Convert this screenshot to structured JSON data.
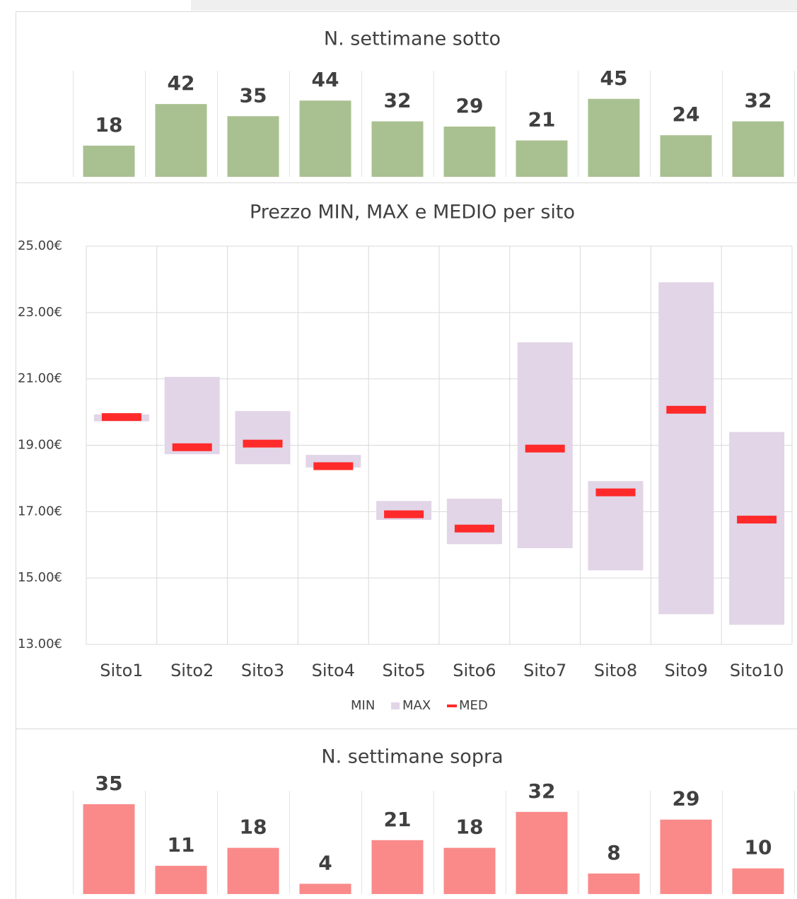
{
  "chart_data": [
    {
      "type": "bar",
      "title": "N. settimane sotto",
      "color": "#a9c191",
      "values": [
        18,
        42,
        35,
        44,
        32,
        29,
        21,
        45,
        24,
        32
      ]
    },
    {
      "type": "range",
      "title": "Prezzo MIN, MAX e MEDIO per sito",
      "categories": [
        "Sito1",
        "Sito2",
        "Sito3",
        "Sito4",
        "Sito5",
        "Sito6",
        "Sito7",
        "Sito8",
        "Sito9",
        "Sito10"
      ],
      "series": [
        {
          "name": "MIN",
          "values": [
            19.72,
            18.73,
            18.43,
            18.33,
            16.75,
            16.02,
            15.9,
            15.23,
            13.91,
            13.59
          ]
        },
        {
          "name": "MAX",
          "color": "#e1d5e7",
          "values": [
            19.93,
            21.06,
            20.03,
            18.71,
            17.32,
            17.39,
            22.1,
            17.92,
            23.91,
            19.4
          ]
        },
        {
          "name": "MED",
          "color": "#ff2a2a",
          "values": [
            19.85,
            18.94,
            19.05,
            18.37,
            16.92,
            16.49,
            18.9,
            17.58,
            20.07,
            16.76
          ]
        }
      ],
      "ylim": [
        13,
        25
      ],
      "yticks": [
        {
          "value": 13,
          "label": "13.00€"
        },
        {
          "value": 15,
          "label": "15.00€"
        },
        {
          "value": 17,
          "label": "17.00€"
        },
        {
          "value": 19,
          "label": "19.00€"
        },
        {
          "value": 21,
          "label": "21.00€"
        },
        {
          "value": 23,
          "label": "23.00€"
        },
        {
          "value": 25,
          "label": "25.00€"
        }
      ],
      "grid": true,
      "legend": "bottom"
    },
    {
      "type": "bar",
      "title": "N. settimane sopra",
      "color": "#fa8a8a",
      "values": [
        35,
        11,
        18,
        4,
        21,
        18,
        32,
        8,
        29,
        10
      ]
    }
  ]
}
